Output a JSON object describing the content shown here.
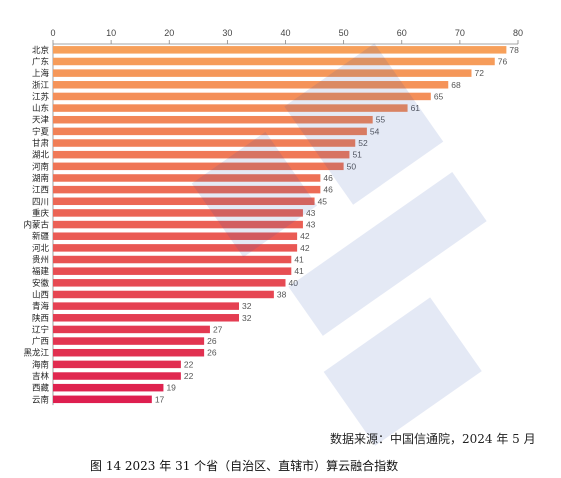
{
  "chart_data": {
    "type": "bar",
    "orientation": "horizontal",
    "categories": [
      "北京",
      "广东",
      "上海",
      "浙江",
      "江苏",
      "山东",
      "天津",
      "宁夏",
      "甘肃",
      "湖北",
      "河南",
      "湖南",
      "江西",
      "四川",
      "重庆",
      "内蒙古",
      "新疆",
      "河北",
      "贵州",
      "福建",
      "安徽",
      "山西",
      "青海",
      "陕西",
      "辽宁",
      "广西",
      "黑龙江",
      "海南",
      "吉林",
      "西藏",
      "云南"
    ],
    "values": [
      78,
      76,
      72,
      68,
      65,
      61,
      55,
      54,
      52,
      51,
      50,
      46,
      46,
      45,
      43,
      43,
      42,
      42,
      41,
      41,
      40,
      38,
      32,
      32,
      27,
      26,
      26,
      22,
      22,
      19,
      17
    ],
    "xlim": [
      0,
      80
    ],
    "xticks": [
      0,
      10,
      20,
      30,
      40,
      50,
      60,
      70,
      80
    ],
    "axis_position": "top",
    "data_labels": true,
    "grid": false,
    "legend": "none",
    "color_start": "#f7a05a",
    "color_end": "#de1f4f"
  },
  "source_text": "数据来源：中国信通院，2024 年 5 月",
  "caption_text": "图 14 2023 年 31 个省（自治区、直辖市）算云融合指数"
}
